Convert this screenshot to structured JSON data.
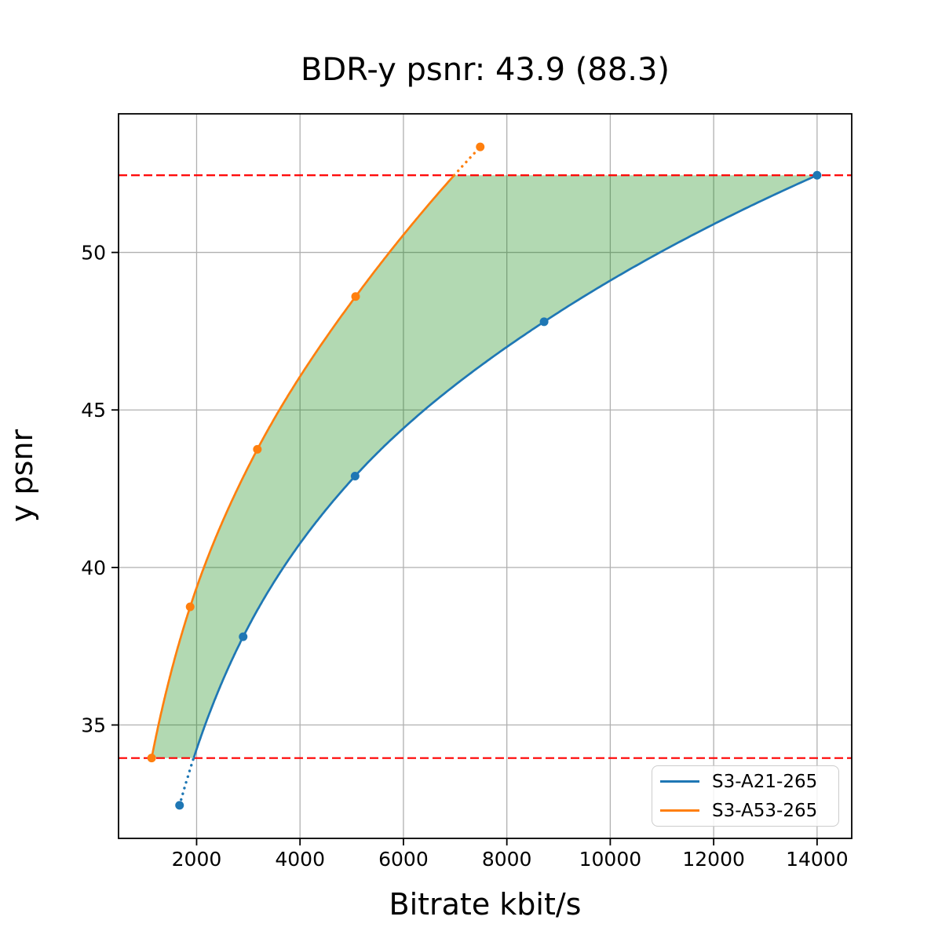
{
  "figure": {
    "title": "BDR-y psnr: 43.9 (88.3)",
    "xlabel": "Bitrate kbit/s",
    "ylabel": "y psnr"
  },
  "chart_data": {
    "type": "line",
    "title": "BDR-y psnr: 43.9 (88.3)",
    "xlabel": "Bitrate kbit/s",
    "ylabel": "y psnr",
    "bd_rate_value": "43.9",
    "bd_rate_secondary": "88.3",
    "xlim": [
      490,
      14670
    ],
    "ylim": [
      31.4,
      54.4
    ],
    "xticks": [
      2000,
      4000,
      6000,
      8000,
      10000,
      12000,
      14000
    ],
    "yticks": [
      35,
      40,
      45,
      50
    ],
    "grid": true,
    "grid_color": "#b0b0b0",
    "legend_position": "lower right",
    "interpolation": "pchip-log-x",
    "series": [
      {
        "name": "S3-A21-265",
        "color": "#1f77b4",
        "x": [
          1670,
          2900,
          5065,
          8720,
          14000
        ],
        "y": [
          32.45,
          37.8,
          42.9,
          47.8,
          52.45
        ]
      },
      {
        "name": "S3-A53-265",
        "color": "#ff7f0e",
        "x": [
          1130,
          1875,
          3175,
          5075,
          7485
        ],
        "y": [
          33.95,
          38.75,
          43.75,
          48.6,
          53.35
        ]
      }
    ],
    "hlines": {
      "values": [
        52.45,
        33.95
      ],
      "color": "#ff0000",
      "style": "dashed",
      "note": "overlap bounds: max of blue curve and min of orange curve"
    },
    "shaded_region": {
      "color": "#008000",
      "opacity": 0.3,
      "description": "BD overlap area between the two rate-distortion curves, clipped to the dashed bounds"
    }
  }
}
